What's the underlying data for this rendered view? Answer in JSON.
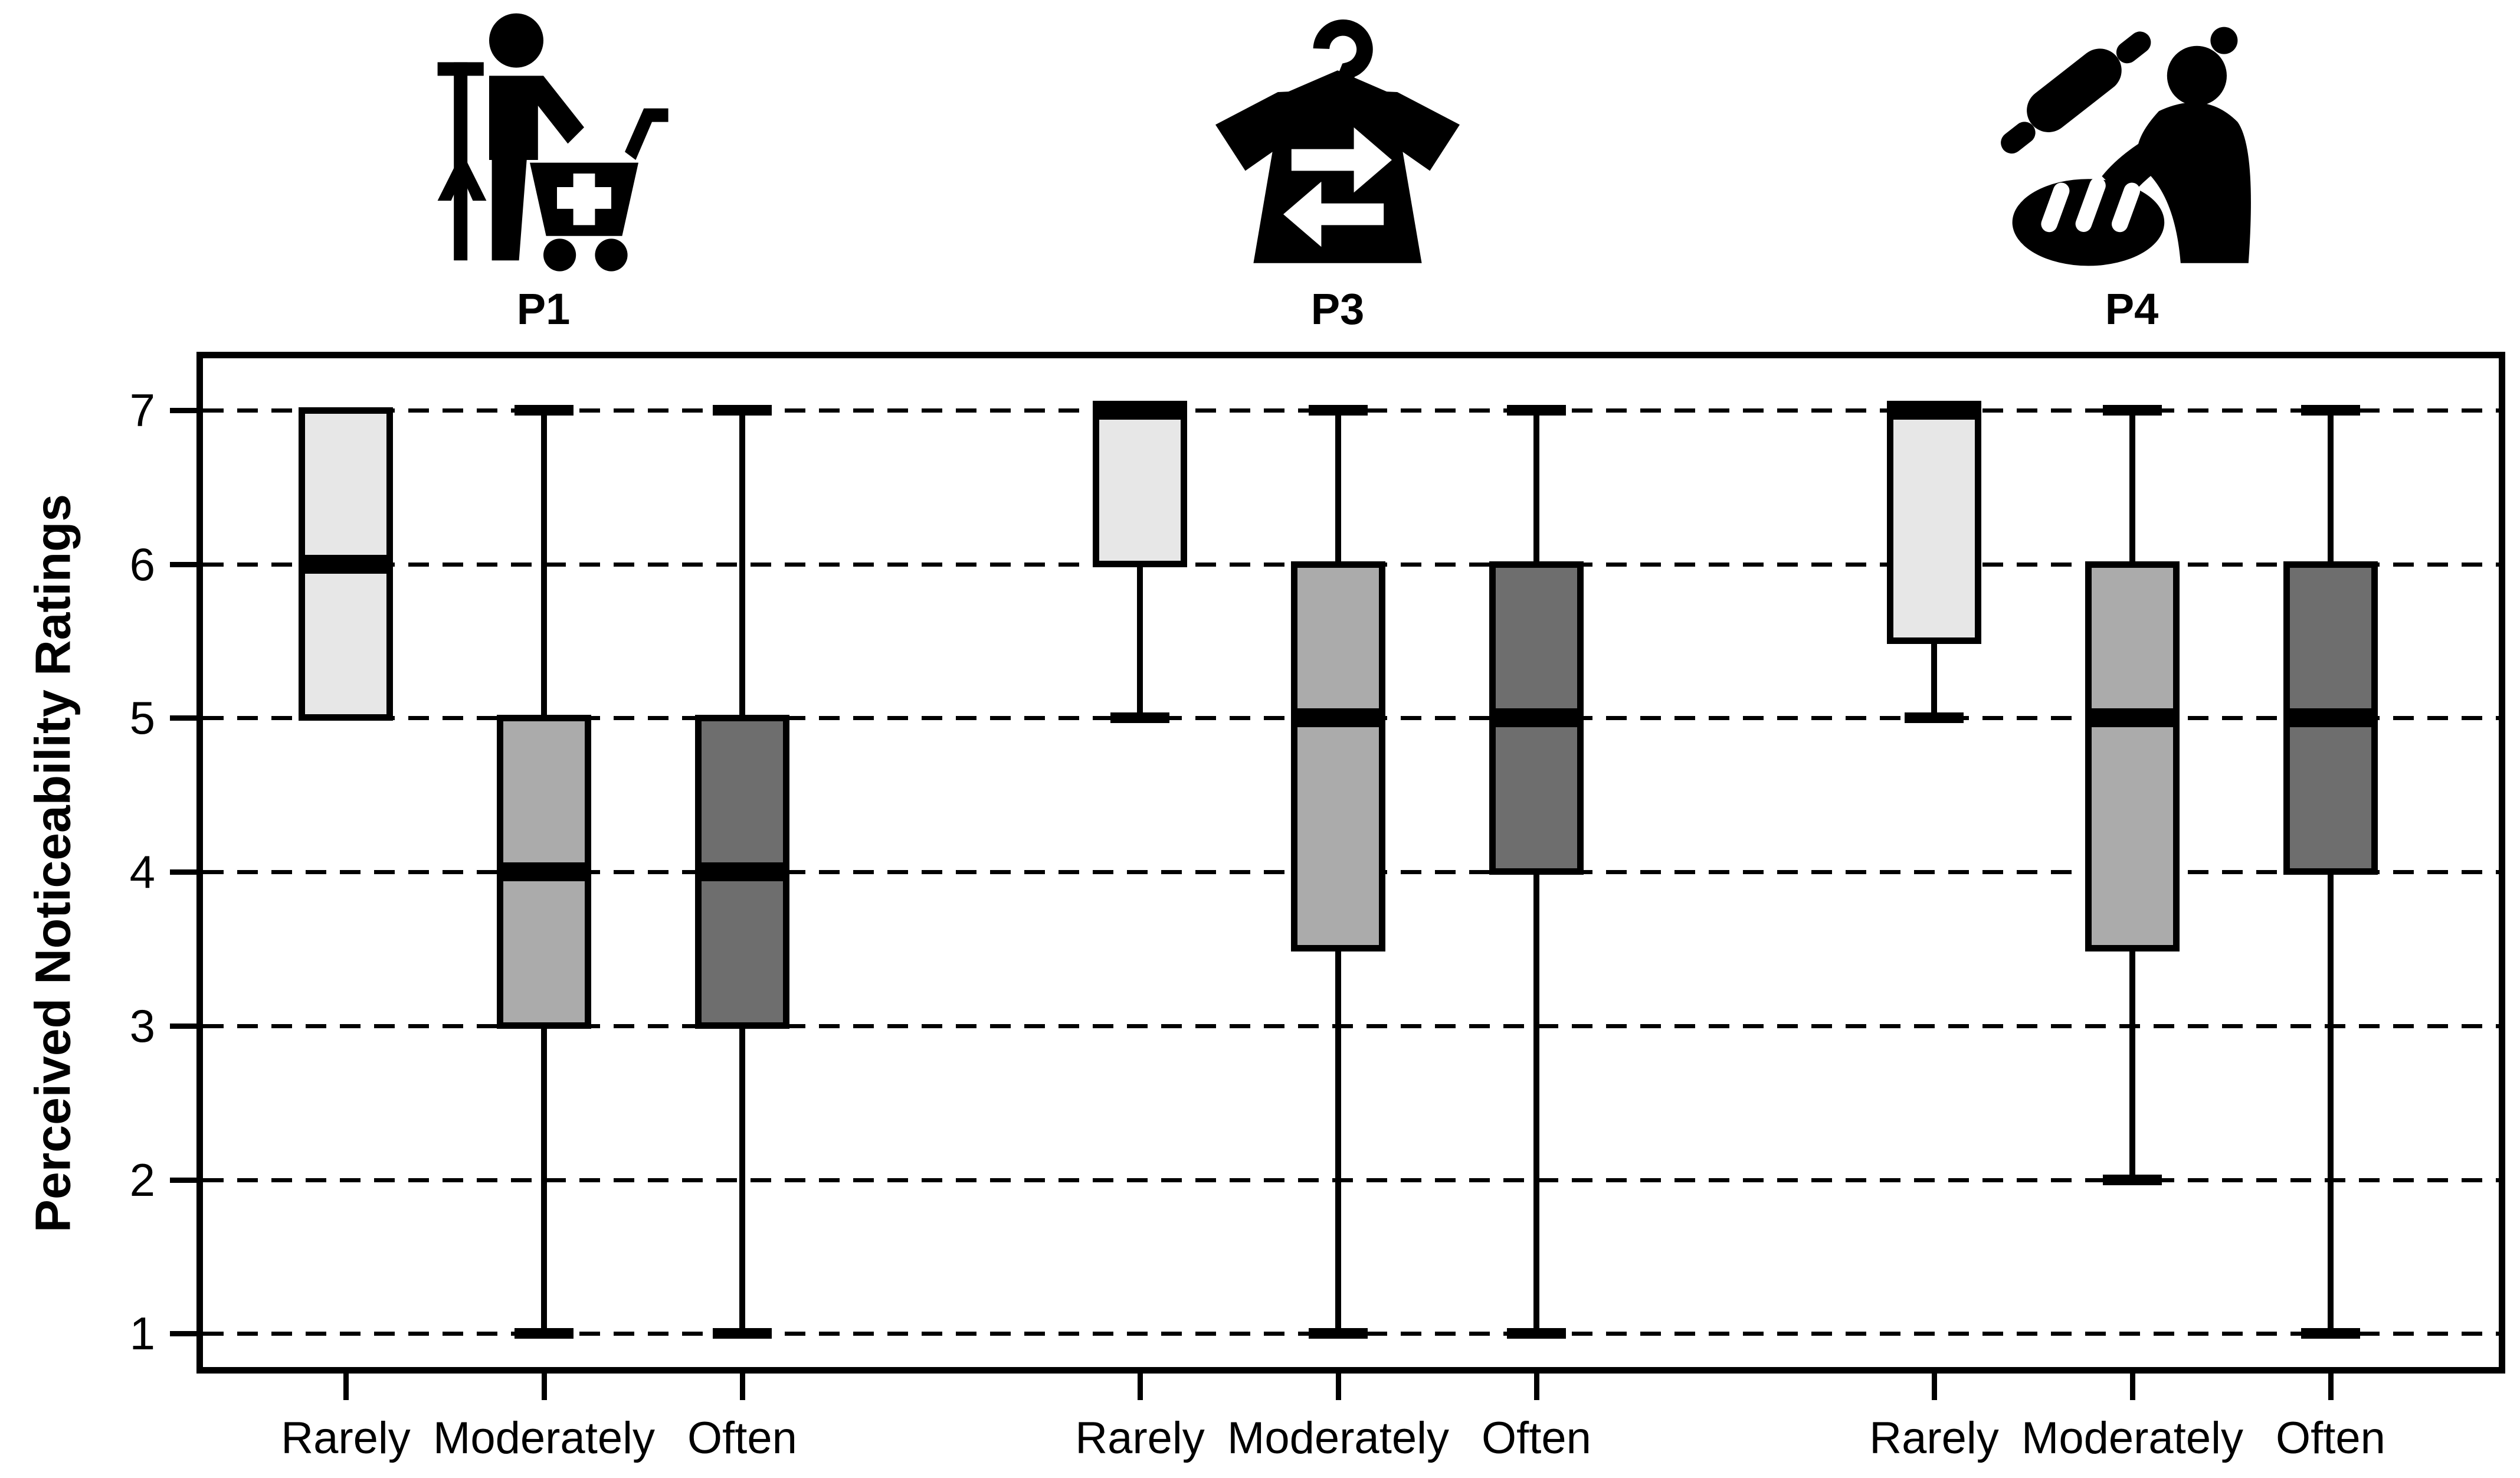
{
  "figure": {
    "y_axis_title": "Perceived Noticeability Ratings",
    "panels": [
      {
        "label": "P1",
        "icon": "grocery-shopping-icon"
      },
      {
        "label": "P3",
        "icon": "clothing-reuse-icon"
      },
      {
        "label": "P4",
        "icon": "baking-icon"
      }
    ]
  },
  "chart_data": {
    "type": "boxplot",
    "title": "",
    "ylabel": "Perceived Noticeability Ratings",
    "ylim": [
      1,
      7
    ],
    "y_ticks": [
      7,
      6,
      5,
      4,
      3,
      2,
      1
    ],
    "grid": "horizontal-dashed",
    "legend_position": "none",
    "categories": [
      "Rarely",
      "Moderately",
      "Often"
    ],
    "category_colors": {
      "Rarely": "#e7e7e7",
      "Moderately": "#ababab",
      "Often": "#6e6e6e"
    },
    "line_color": "#000000",
    "panels": [
      {
        "label": "P1",
        "icon": "grocery-shopping-icon",
        "boxes": [
          {
            "category": "Rarely",
            "min": 5,
            "q1": 5,
            "median": 6,
            "q3": 7,
            "max": 7,
            "fill": "#e7e7e7"
          },
          {
            "category": "Moderately",
            "min": 1,
            "q1": 3,
            "median": 4,
            "q3": 5,
            "max": 7,
            "fill": "#ababab"
          },
          {
            "category": "Often",
            "min": 1,
            "q1": 3,
            "median": 4,
            "q3": 5,
            "max": 7,
            "fill": "#6e6e6e"
          }
        ]
      },
      {
        "label": "P3",
        "icon": "clothing-reuse-icon",
        "boxes": [
          {
            "category": "Rarely",
            "min": 5,
            "q1": 6,
            "median": 7,
            "q3": 7,
            "max": 7,
            "fill": "#e7e7e7"
          },
          {
            "category": "Moderately",
            "min": 1,
            "q1": 3.5,
            "median": 5,
            "q3": 6,
            "max": 7,
            "fill": "#ababab"
          },
          {
            "category": "Often",
            "min": 1,
            "q1": 4,
            "median": 5,
            "q3": 6,
            "max": 7,
            "fill": "#6e6e6e"
          }
        ]
      },
      {
        "label": "P4",
        "icon": "baking-icon",
        "boxes": [
          {
            "category": "Rarely",
            "min": 5,
            "q1": 5.5,
            "median": 7,
            "q3": 7,
            "max": 7,
            "fill": "#e7e7e7"
          },
          {
            "category": "Moderately",
            "min": 2,
            "q1": 3.5,
            "median": 5,
            "q3": 6,
            "max": 7,
            "fill": "#ababab"
          },
          {
            "category": "Often",
            "min": 1,
            "q1": 4,
            "median": 5,
            "q3": 6,
            "max": 7,
            "fill": "#6e6e6e"
          }
        ]
      }
    ]
  }
}
